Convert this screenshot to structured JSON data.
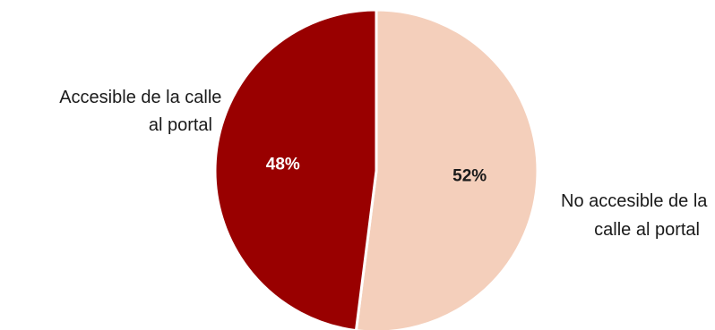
{
  "chart_data": {
    "type": "pie",
    "title": "",
    "slices": [
      {
        "label_lines": [
          "No accesible de la",
          "calle al portal"
        ],
        "value": 52,
        "value_label": "52%",
        "color": "#f4cfbb",
        "value_label_color": "#1a1a1a"
      },
      {
        "label_lines": [
          "Accesible de la calle",
          "al portal"
        ],
        "value": 48,
        "value_label": "48%",
        "color": "#990000",
        "value_label_color": "#ffffff"
      }
    ],
    "legend": "none",
    "start_angle_deg": 0,
    "direction": "clockwise",
    "slice_border_color": "#ffffff"
  }
}
